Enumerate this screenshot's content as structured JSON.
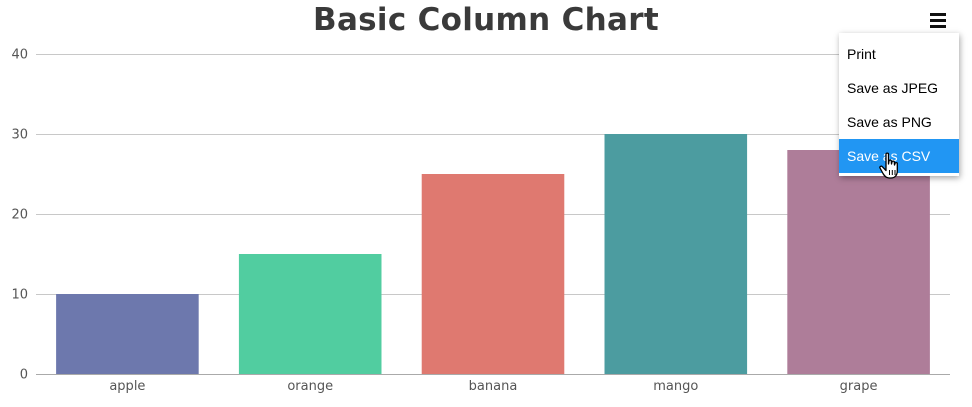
{
  "chart_data": {
    "type": "bar",
    "title": "Basic Column Chart",
    "categories": [
      "apple",
      "orange",
      "banana",
      "mango",
      "grape"
    ],
    "values": [
      10,
      15,
      25,
      30,
      28
    ],
    "colors": [
      "#6d78ad",
      "#51cda0",
      "#df7970",
      "#4c9ca0",
      "#ae7d99"
    ],
    "xlabel": "",
    "ylabel": "",
    "ylim": [
      0,
      40
    ],
    "yticks": [
      0,
      10,
      20,
      30,
      40
    ],
    "grid": true,
    "legend": "none"
  },
  "export_menu": {
    "items": [
      {
        "label": "Print",
        "active": false
      },
      {
        "label": "Save as JPEG",
        "active": false
      },
      {
        "label": "Save as PNG",
        "active": false
      },
      {
        "label": "Save as CSV",
        "active": true
      }
    ],
    "active_color": "#2196f3"
  }
}
